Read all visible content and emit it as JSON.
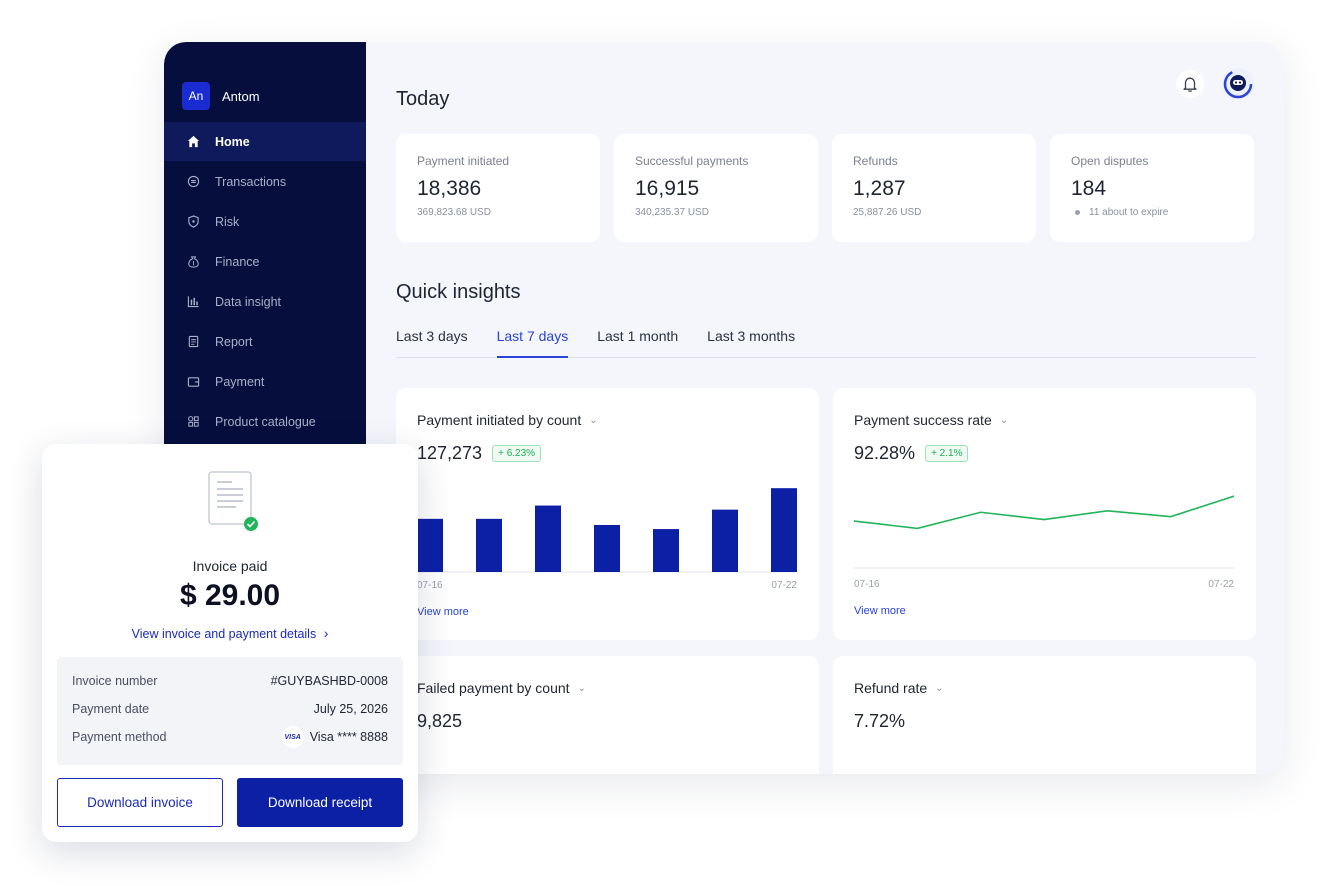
{
  "sidebar": {
    "brand_badge": "An",
    "brand_name": "Antom",
    "items": [
      {
        "label": "Home",
        "icon": "home-icon"
      },
      {
        "label": "Transactions",
        "icon": "transactions-icon"
      },
      {
        "label": "Risk",
        "icon": "shield-icon"
      },
      {
        "label": "Finance",
        "icon": "money-bag-icon"
      },
      {
        "label": "Data insight",
        "icon": "bar-chart-icon"
      },
      {
        "label": "Report",
        "icon": "report-icon"
      },
      {
        "label": "Payment",
        "icon": "wallet-icon"
      },
      {
        "label": "Product catalogue",
        "icon": "grid-icon"
      }
    ]
  },
  "header": {
    "title": "Today"
  },
  "kpis": [
    {
      "label": "Payment initiated",
      "value": "18,386",
      "sub": "369,823.68 USD"
    },
    {
      "label": "Successful payments",
      "value": "16,915",
      "sub": "340,235.37 USD"
    },
    {
      "label": "Refunds",
      "value": "1,287",
      "sub": "25,887.26 USD"
    },
    {
      "label": "Open disputes",
      "value": "184",
      "sub": "11 about to expire"
    }
  ],
  "insights": {
    "title": "Quick insights",
    "tabs": [
      "Last 3 days",
      "Last 7 days",
      "Last 1 month",
      "Last 3 months"
    ],
    "active_tab": "Last 7 days",
    "cards": [
      {
        "title": "Payment initiated by count",
        "value": "127,273",
        "badge": "+ 6.23%",
        "x_start": "07-16",
        "x_end": "07-22",
        "link": "View more"
      },
      {
        "title": "Payment success rate",
        "value": "92.28%",
        "badge": "+ 2.1%",
        "x_start": "07-16",
        "x_end": "07-22",
        "link": "View more"
      },
      {
        "title": "Failed payment by count",
        "value": "9,825"
      },
      {
        "title": "Refund rate",
        "value": "7.72%"
      }
    ]
  },
  "chart_data": [
    {
      "type": "bar",
      "values": [
        52,
        52,
        65,
        46,
        42,
        61,
        82
      ],
      "ylim": [
        0,
        90
      ],
      "color": "#0c20a6"
    },
    {
      "type": "line",
      "values": [
        92.2,
        91.7,
        92.8,
        92.3,
        92.9,
        92.5,
        93.9
      ],
      "ylim": [
        89,
        95
      ],
      "color": "#22b45a"
    }
  ],
  "invoice": {
    "status": "Invoice paid",
    "amount": "$ 29.00",
    "details_link": "View invoice and payment details",
    "rows": [
      {
        "label": "Invoice number",
        "value": "#GUYBASHBD-0008"
      },
      {
        "label": "Payment date",
        "value": "July 25, 2026"
      },
      {
        "label": "Payment method",
        "value": "Visa **** 8888"
      }
    ],
    "visa_logo_text": "VISA",
    "download_invoice": "Download invoice",
    "download_receipt": "Download receipt"
  },
  "colors": {
    "sidebar_bg": "#050e3d",
    "accent": "#2a43d8",
    "primary_button": "#0c20a6",
    "success": "#22b45a"
  }
}
